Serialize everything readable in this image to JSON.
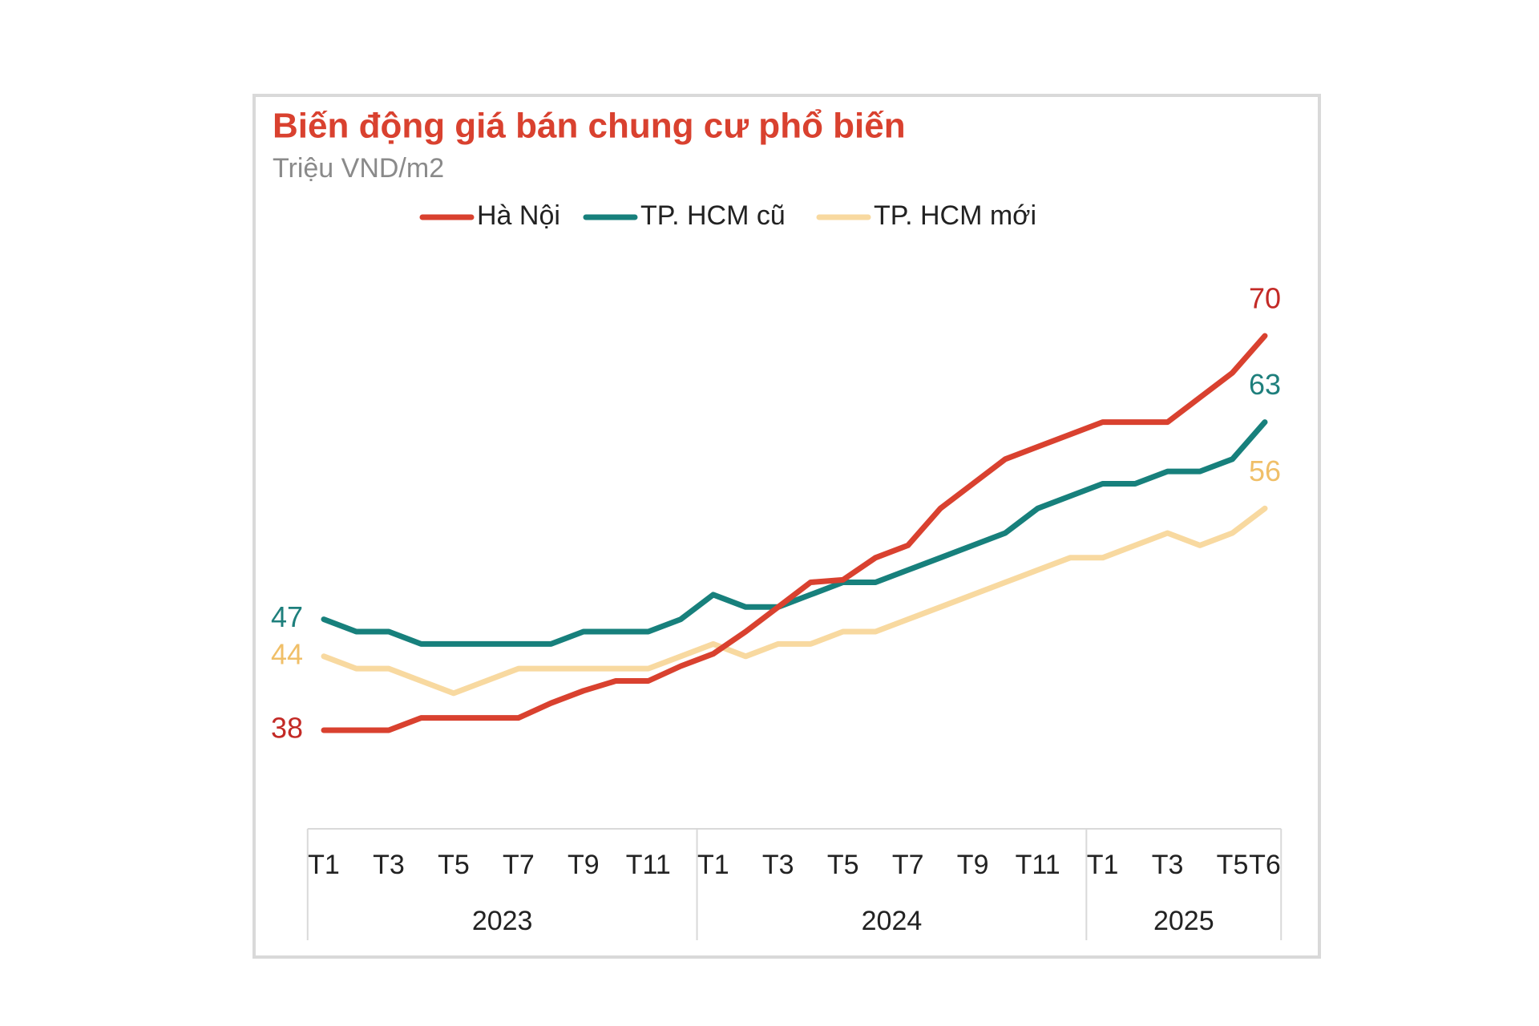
{
  "chart_data": {
    "type": "line",
    "title": "Biến động giá bán chung cư phổ biến",
    "subtitle": "Triệu VND/m2",
    "categories": [
      "T1",
      null,
      "T3",
      null,
      "T5",
      null,
      "T7",
      null,
      "T9",
      null,
      "T11",
      null,
      "T1",
      null,
      "T3",
      null,
      "T5",
      null,
      "T7",
      null,
      "T9",
      null,
      "T11",
      null,
      "T1",
      null,
      "T3",
      null,
      "T5",
      "T6"
    ],
    "category_groups": [
      "2023",
      "2024",
      "2025"
    ],
    "series": [
      {
        "name": "Hà Nội",
        "color": "#d9412f",
        "label_color": "#c32a26",
        "values": [
          38,
          38,
          38,
          39,
          39,
          39,
          39,
          40.2,
          41.2,
          42,
          42,
          43.2,
          44.2,
          46,
          48,
          50,
          50.2,
          52,
          53,
          56,
          58,
          60,
          61,
          62,
          63,
          63,
          63,
          65,
          67,
          70
        ]
      },
      {
        "name": "TP. HCM cũ",
        "color": "#17807c",
        "label_color": "#1e7f7c",
        "values": [
          47,
          46,
          46,
          45,
          45,
          45,
          45,
          45,
          46,
          46,
          46,
          47,
          49,
          48,
          48,
          49,
          50,
          50,
          51,
          52,
          53,
          54,
          56,
          57,
          58,
          58,
          59,
          59,
          60,
          63
        ]
      },
      {
        "name": "TP. HCM mới",
        "color": "#f8d9a0",
        "label_color": "#f0bf68",
        "values": [
          44,
          43,
          43,
          42,
          41,
          42,
          43,
          43,
          43,
          43,
          43,
          44,
          45,
          44,
          45,
          45,
          46,
          46,
          47,
          48,
          49,
          50,
          51,
          52,
          52,
          53,
          54,
          53,
          54,
          56
        ]
      }
    ]
  }
}
